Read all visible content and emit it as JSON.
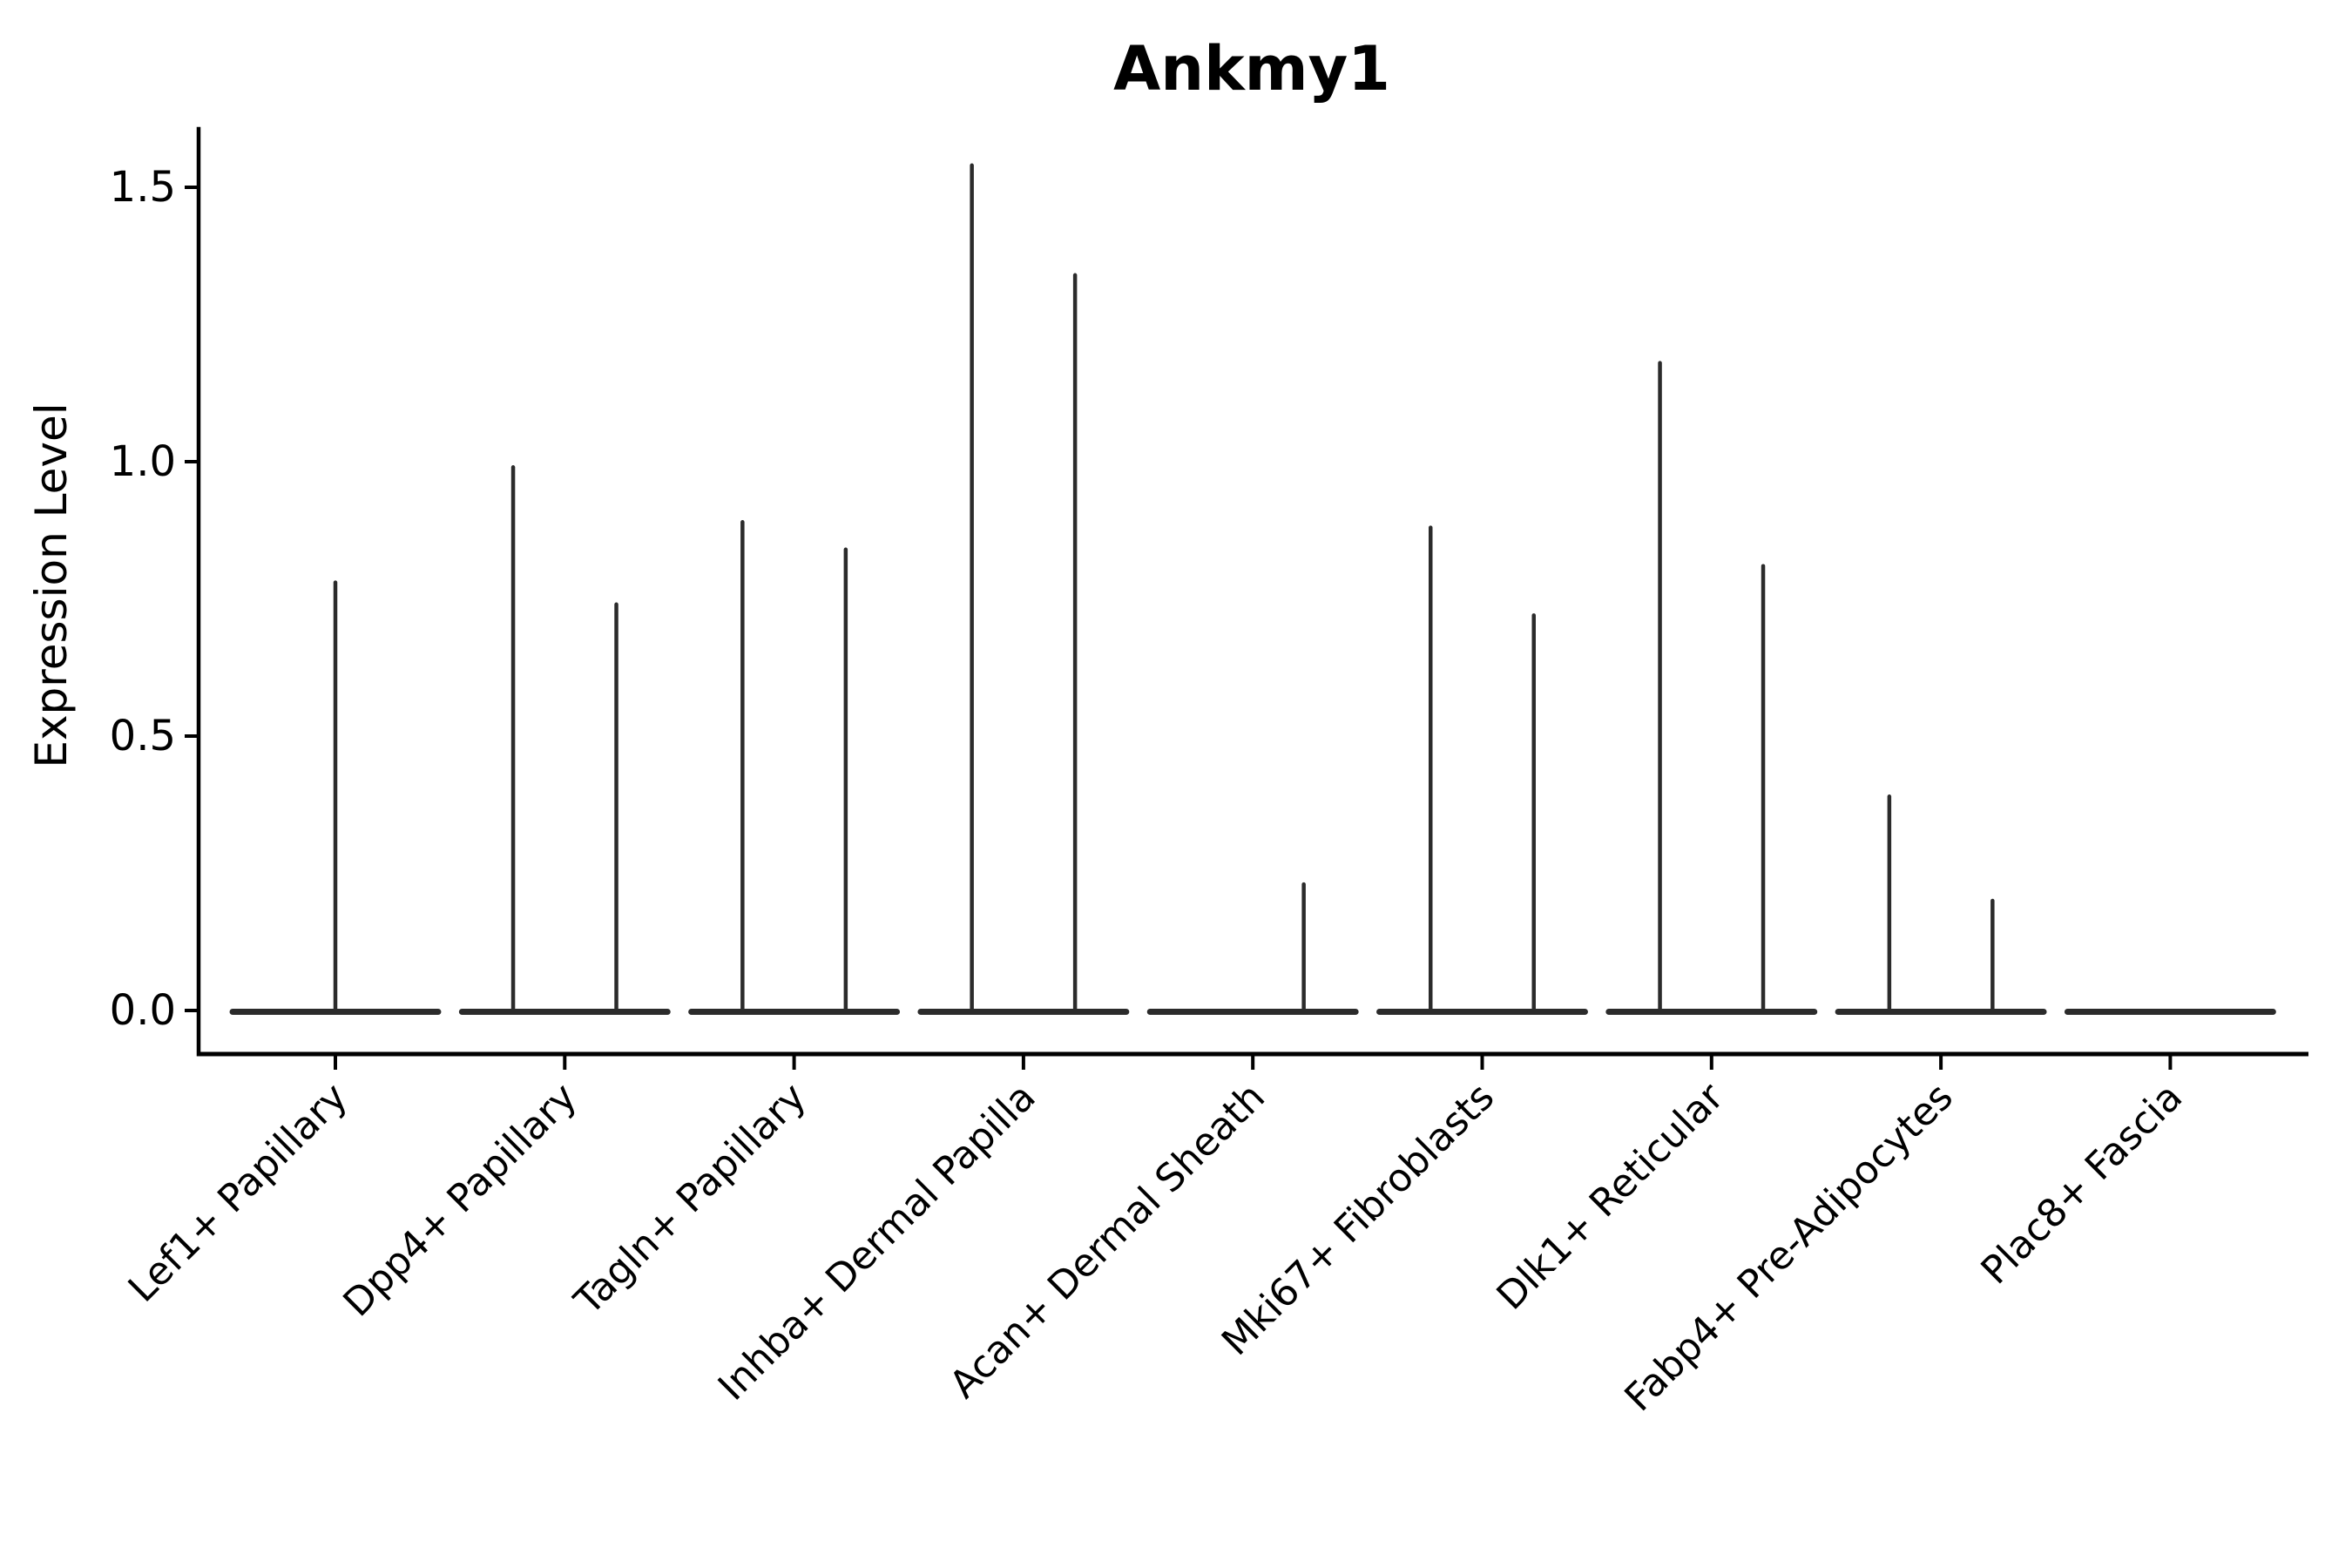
{
  "figure": {
    "background": "#ffffff",
    "axis_color": "#000000",
    "text_color": "#000000",
    "violin_color": "#2b2b2b"
  },
  "chart_data": {
    "type": "violin",
    "title": "Ankmy1",
    "xlabel": "",
    "ylabel": "Expression Level",
    "ylim": [
      -0.08,
      1.61
    ],
    "yticks": [
      0.0,
      0.5,
      1.0,
      1.5
    ],
    "ytick_labels": [
      "0.0",
      "0.5",
      "1.0",
      "1.5"
    ],
    "grid": false,
    "legend_position": "none",
    "categories": [
      "Lef1+ Papillary",
      "Dpp4+ Papillary",
      "Tagln+ Papillary",
      "Inhba+ Dermal Papilla",
      "Acan+ Dermal Sheath",
      "Mki67+ Fibroblasts",
      "Dlk1+ Reticular",
      "Fabp4+ Pre-Adipocytes",
      "Plac8+ Fascia"
    ],
    "violin_style": {
      "base_value": 0.0,
      "base_halfwidth_frac": 0.448,
      "spike_offset_note": "offset_frac is fraction of category spacing; spikes are collapsed violins (most cells at 0, max expression at top)",
      "series": [
        {
          "category": "Lef1+ Papillary",
          "spikes": [
            {
              "offset_frac": 0.0,
              "max_expression": 0.78
            }
          ]
        },
        {
          "category": "Dpp4+ Papillary",
          "spikes": [
            {
              "offset_frac": -0.225,
              "max_expression": 0.99
            },
            {
              "offset_frac": 0.225,
              "max_expression": 0.74
            }
          ]
        },
        {
          "category": "Tagln+ Papillary",
          "spikes": [
            {
              "offset_frac": -0.225,
              "max_expression": 0.89
            },
            {
              "offset_frac": 0.225,
              "max_expression": 0.84
            }
          ]
        },
        {
          "category": "Inhba+ Dermal Papilla",
          "spikes": [
            {
              "offset_frac": -0.225,
              "max_expression": 1.54
            },
            {
              "offset_frac": 0.225,
              "max_expression": 1.34
            }
          ]
        },
        {
          "category": "Acan+ Dermal Sheath",
          "spikes": [
            {
              "offset_frac": 0.222,
              "max_expression": 0.23
            }
          ]
        },
        {
          "category": "Mki67+ Fibroblasts",
          "spikes": [
            {
              "offset_frac": -0.225,
              "max_expression": 0.88
            },
            {
              "offset_frac": 0.225,
              "max_expression": 0.72
            }
          ]
        },
        {
          "category": "Dlk1+ Reticular",
          "spikes": [
            {
              "offset_frac": -0.225,
              "max_expression": 1.18
            },
            {
              "offset_frac": 0.225,
              "max_expression": 0.81
            }
          ]
        },
        {
          "category": "Fabp4+ Pre-Adipocytes",
          "spikes": [
            {
              "offset_frac": -0.225,
              "max_expression": 0.39
            },
            {
              "offset_frac": 0.225,
              "max_expression": 0.2
            }
          ]
        },
        {
          "category": "Plac8+ Fascia",
          "spikes": []
        }
      ]
    }
  }
}
